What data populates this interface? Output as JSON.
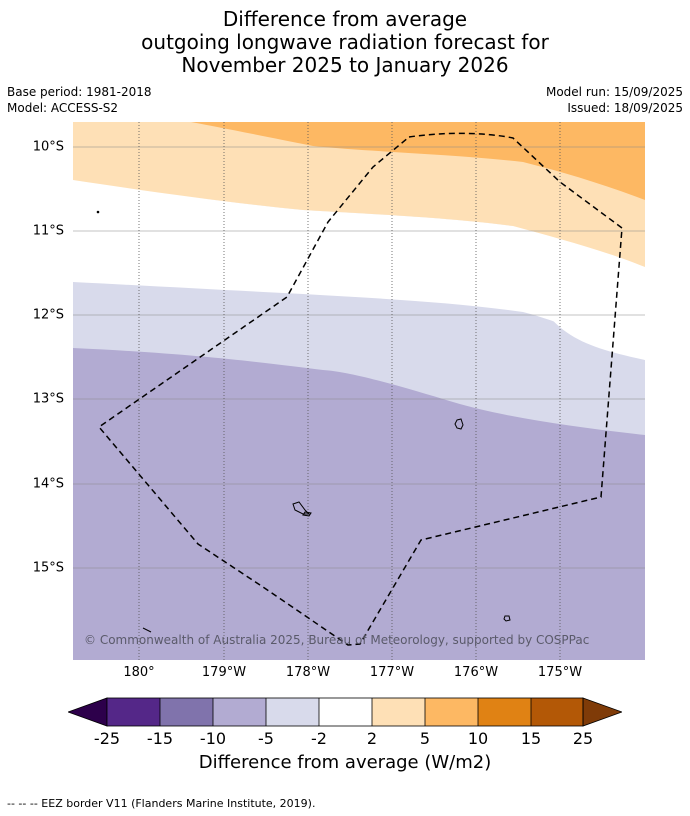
{
  "title": {
    "line1": "Difference from average",
    "line2": "outgoing longwave radiation forecast for",
    "line3": "November 2025 to January 2026"
  },
  "meta": {
    "base_period": "Base period: 1981-2018",
    "model": "Model: ACCESS-S2",
    "model_run": "Model run: 15/09/2025",
    "issued": "Issued: 18/09/2025"
  },
  "map": {
    "lat_labels": [
      "10°S",
      "11°S",
      "12°S",
      "13°S",
      "14°S",
      "15°S"
    ],
    "lon_labels": [
      "180°",
      "179°W",
      "178°W",
      "177°W",
      "176°W",
      "175°W"
    ],
    "copyright": "© Commonwealth of Australia 2025, Bureau of Meteorology, supported by COSPPac",
    "colors": {
      "orange_5_10": "#fdb863",
      "orange_2_5": "#fee0b6",
      "neutral": "#ffffff",
      "purple_-5_-2": "#d8daeb",
      "purple_-10_-5": "#b2abd2"
    }
  },
  "colorbar": {
    "ticks": [
      "-25",
      "-15",
      "-10",
      "-5",
      "-2",
      "2",
      "5",
      "10",
      "15",
      "25"
    ],
    "label": "Difference from average (W/m2)",
    "colors": [
      "#2d004b",
      "#542788",
      "#8073ac",
      "#b2abd2",
      "#d8daeb",
      "#ffffff",
      "#fee0b6",
      "#fdb863",
      "#e08214",
      "#b35806",
      "#7f3b08"
    ]
  },
  "footnote": "-- -- -- EEZ border V11 (Flanders Marine Institute, 2019)."
}
